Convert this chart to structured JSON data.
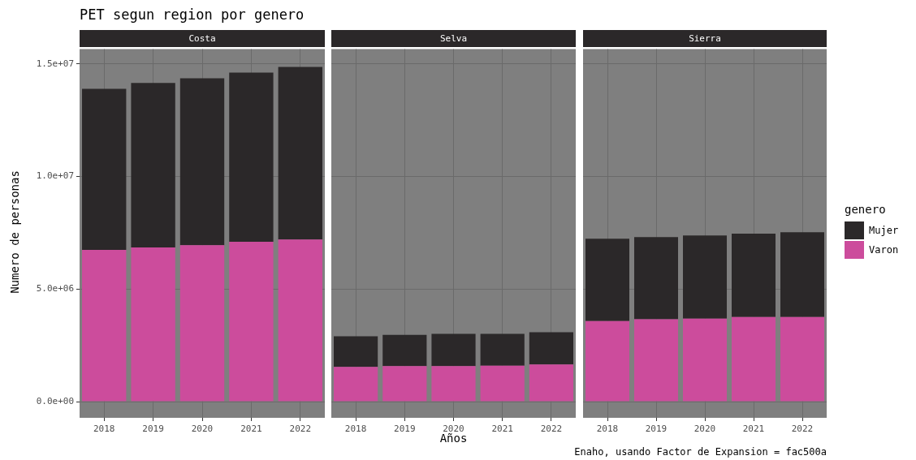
{
  "chart_data": [
    {
      "type": "bar",
      "title": "PET segun region por genero",
      "subtitle": "Costa",
      "ylabel": "Numero de personas",
      "categories": [
        "2018",
        "2019",
        "2020",
        "2021",
        "2022"
      ],
      "stacked": true,
      "grid": true,
      "ylim": [
        -720000,
        15660000
      ],
      "yticks": [
        {
          "value": 0,
          "label": "0.0e+00"
        },
        {
          "value": 5000000,
          "label": "5.0e+06"
        },
        {
          "value": 10000000,
          "label": "1.0e+07"
        },
        {
          "value": 15000000,
          "label": "1.5e+07"
        }
      ],
      "series": [
        {
          "color": "#cc4c9c",
          "values": [
            6740000,
            6850000,
            6950000,
            7100000,
            7200000
          ]
        },
        {
          "color": "#2b2829",
          "values": [
            7160000,
            7310000,
            7420000,
            7520000,
            7670000
          ]
        }
      ]
    },
    {
      "type": "bar",
      "subtitle": "Selva",
      "xlabel": "Años",
      "categories": [
        "2018",
        "2019",
        "2020",
        "2021",
        "2022"
      ],
      "stacked": true,
      "grid": true,
      "tick_labels": "x",
      "ylim": [
        -720000,
        15660000
      ],
      "yticks": [
        {
          "value": 0,
          "label": null
        },
        {
          "value": 5000000,
          "label": null
        },
        {
          "value": 10000000,
          "label": null
        },
        {
          "value": 15000000,
          "label": null
        }
      ],
      "series": [
        {
          "color": "#cc4c9c",
          "values": [
            1540000,
            1580000,
            1580000,
            1600000,
            1650000
          ]
        },
        {
          "color": "#2b2829",
          "values": [
            1360000,
            1390000,
            1430000,
            1410000,
            1430000
          ]
        }
      ]
    },
    {
      "type": "bar",
      "subtitle": "Sierra",
      "legend_title": "genero",
      "legend": "right",
      "annotations": [
        "Enaho, usando Factor de Expansion = fac500a"
      ],
      "categories": [
        "2018",
        "2019",
        "2020",
        "2021",
        "2022"
      ],
      "stacked": true,
      "grid": true,
      "tick_labels": "x",
      "ylim": [
        -720000,
        15660000
      ],
      "yticks": [
        {
          "value": 0,
          "label": null
        },
        {
          "value": 5000000,
          "label": null
        },
        {
          "value": 10000000,
          "label": null
        },
        {
          "value": 15000000,
          "label": null
        }
      ],
      "series": [
        {
          "name": "Varon",
          "color": "#cc4c9c",
          "values": [
            3580000,
            3660000,
            3690000,
            3760000,
            3760000
          ]
        },
        {
          "name": "Mujer",
          "color": "#2b2829",
          "values": [
            3660000,
            3650000,
            3690000,
            3700000,
            3770000
          ]
        }
      ]
    }
  ]
}
